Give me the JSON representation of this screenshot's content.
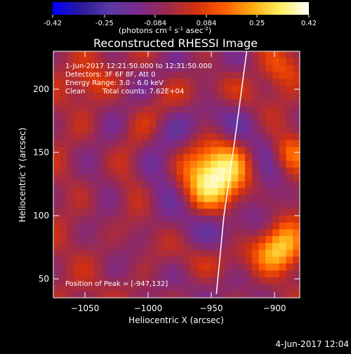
{
  "colorbar": {
    "ticks": [
      "-0.42",
      "-0.25",
      "-0.084",
      "0.084",
      "0.25",
      "0.42"
    ],
    "tick_values": [
      -0.42,
      -0.25,
      -0.084,
      0.084,
      0.25,
      0.42
    ],
    "range": [
      -0.42,
      0.42
    ],
    "label_main": "(photons cm",
    "label_sup1": "-2",
    "label_mid": " s",
    "label_sup2": "-1",
    "label_asec": " asec",
    "label_sup3": "-2",
    "label_end": ")",
    "colors": [
      "#0000ff",
      "#2a1a9a",
      "#5a3aa6",
      "#7a2a8c",
      "#9a2a50",
      "#d03010",
      "#ff5a00",
      "#ffaa10",
      "#ffef60",
      "#ffffff"
    ]
  },
  "annotations": {
    "line1": "1-Jun-2017 12:21:50.000 to 12:31:50.000",
    "line2": "Detectors: 3F 6F 8F, Att 0",
    "line3": "Energy Range: 3.0 - 6.0 keV",
    "line4_a": "Clean",
    "line4_b": "Total counts: 7.62E+04",
    "peak": "Position of Peak = [-947,132]"
  },
  "footer": {
    "date": "4-Jun-2017 12:04"
  },
  "chart_data": {
    "type": "heatmap",
    "title": "Reconstructed RHESSI Image",
    "xlabel": "Heliocentric X (arcsec)",
    "ylabel": "Heliocentric Y (arcsec)",
    "xlim": [
      -1075,
      -880
    ],
    "ylim": [
      35,
      230
    ],
    "xticks": [
      -1050,
      -1000,
      -950,
      -900
    ],
    "xtick_labels": [
      "−1050",
      "−1000",
      "−950",
      "−900"
    ],
    "yticks": [
      50,
      100,
      150,
      200
    ],
    "ytick_labels": [
      "50",
      "100",
      "150",
      "200"
    ],
    "colorscale_range": [
      -0.42,
      0.42
    ],
    "peak_position": [
      -947,
      132
    ],
    "peak_value": 0.42,
    "sources": [
      {
        "x": -947,
        "y": 132,
        "intensity": 0.42,
        "width": 20
      },
      {
        "x": -895,
        "y": 72,
        "intensity": 0.32,
        "width": 14
      },
      {
        "x": -890,
        "y": 150,
        "intensity": 0.16,
        "width": 10
      },
      {
        "x": -895,
        "y": 215,
        "intensity": 0.18,
        "width": 12
      },
      {
        "x": -1045,
        "y": 205,
        "intensity": 0.12,
        "width": 10
      }
    ],
    "limb": {
      "x": [
        -946,
        -940,
        -930,
        -922
      ],
      "y": [
        38,
        100,
        170,
        230
      ]
    }
  }
}
